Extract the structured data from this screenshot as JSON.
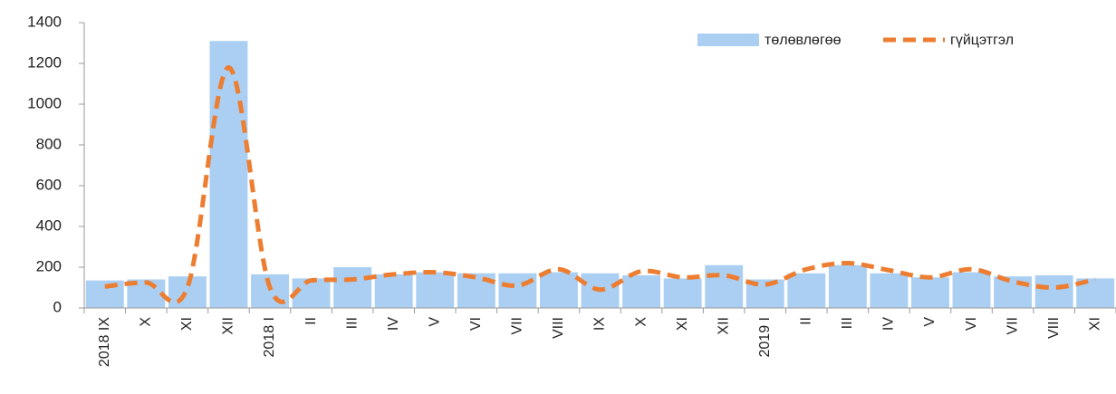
{
  "chart_data": {
    "type": "bar_line",
    "categories": [
      "2018 IX",
      "X",
      "XI",
      "XII",
      "2018 I",
      "II",
      "III",
      "IV",
      "V",
      "VI",
      "VII",
      "VIII",
      "IX",
      "X",
      "XI",
      "XII",
      "2019 I",
      "II",
      "III",
      "IV",
      "V",
      "VI",
      "VII",
      "VIII",
      "XI"
    ],
    "series": [
      {
        "name": "төлөвлөгөө",
        "type": "bar",
        "color": "#aacff2",
        "values": [
          135,
          140,
          155,
          1310,
          165,
          145,
          200,
          165,
          175,
          170,
          170,
          175,
          170,
          160,
          145,
          210,
          140,
          170,
          210,
          170,
          150,
          175,
          155,
          160,
          145
        ]
      },
      {
        "name": "гүйцэтгэл",
        "type": "line",
        "color": "#ed7d31",
        "values": [
          105,
          125,
          100,
          1180,
          100,
          135,
          140,
          165,
          175,
          150,
          110,
          190,
          90,
          180,
          150,
          160,
          115,
          190,
          220,
          185,
          150,
          190,
          130,
          100,
          140
        ]
      }
    ],
    "ylim": [
      0,
      1400
    ],
    "yticks": [
      0,
      200,
      400,
      600,
      800,
      1000,
      1200,
      1400
    ],
    "legend": "top-right",
    "grid": false
  }
}
